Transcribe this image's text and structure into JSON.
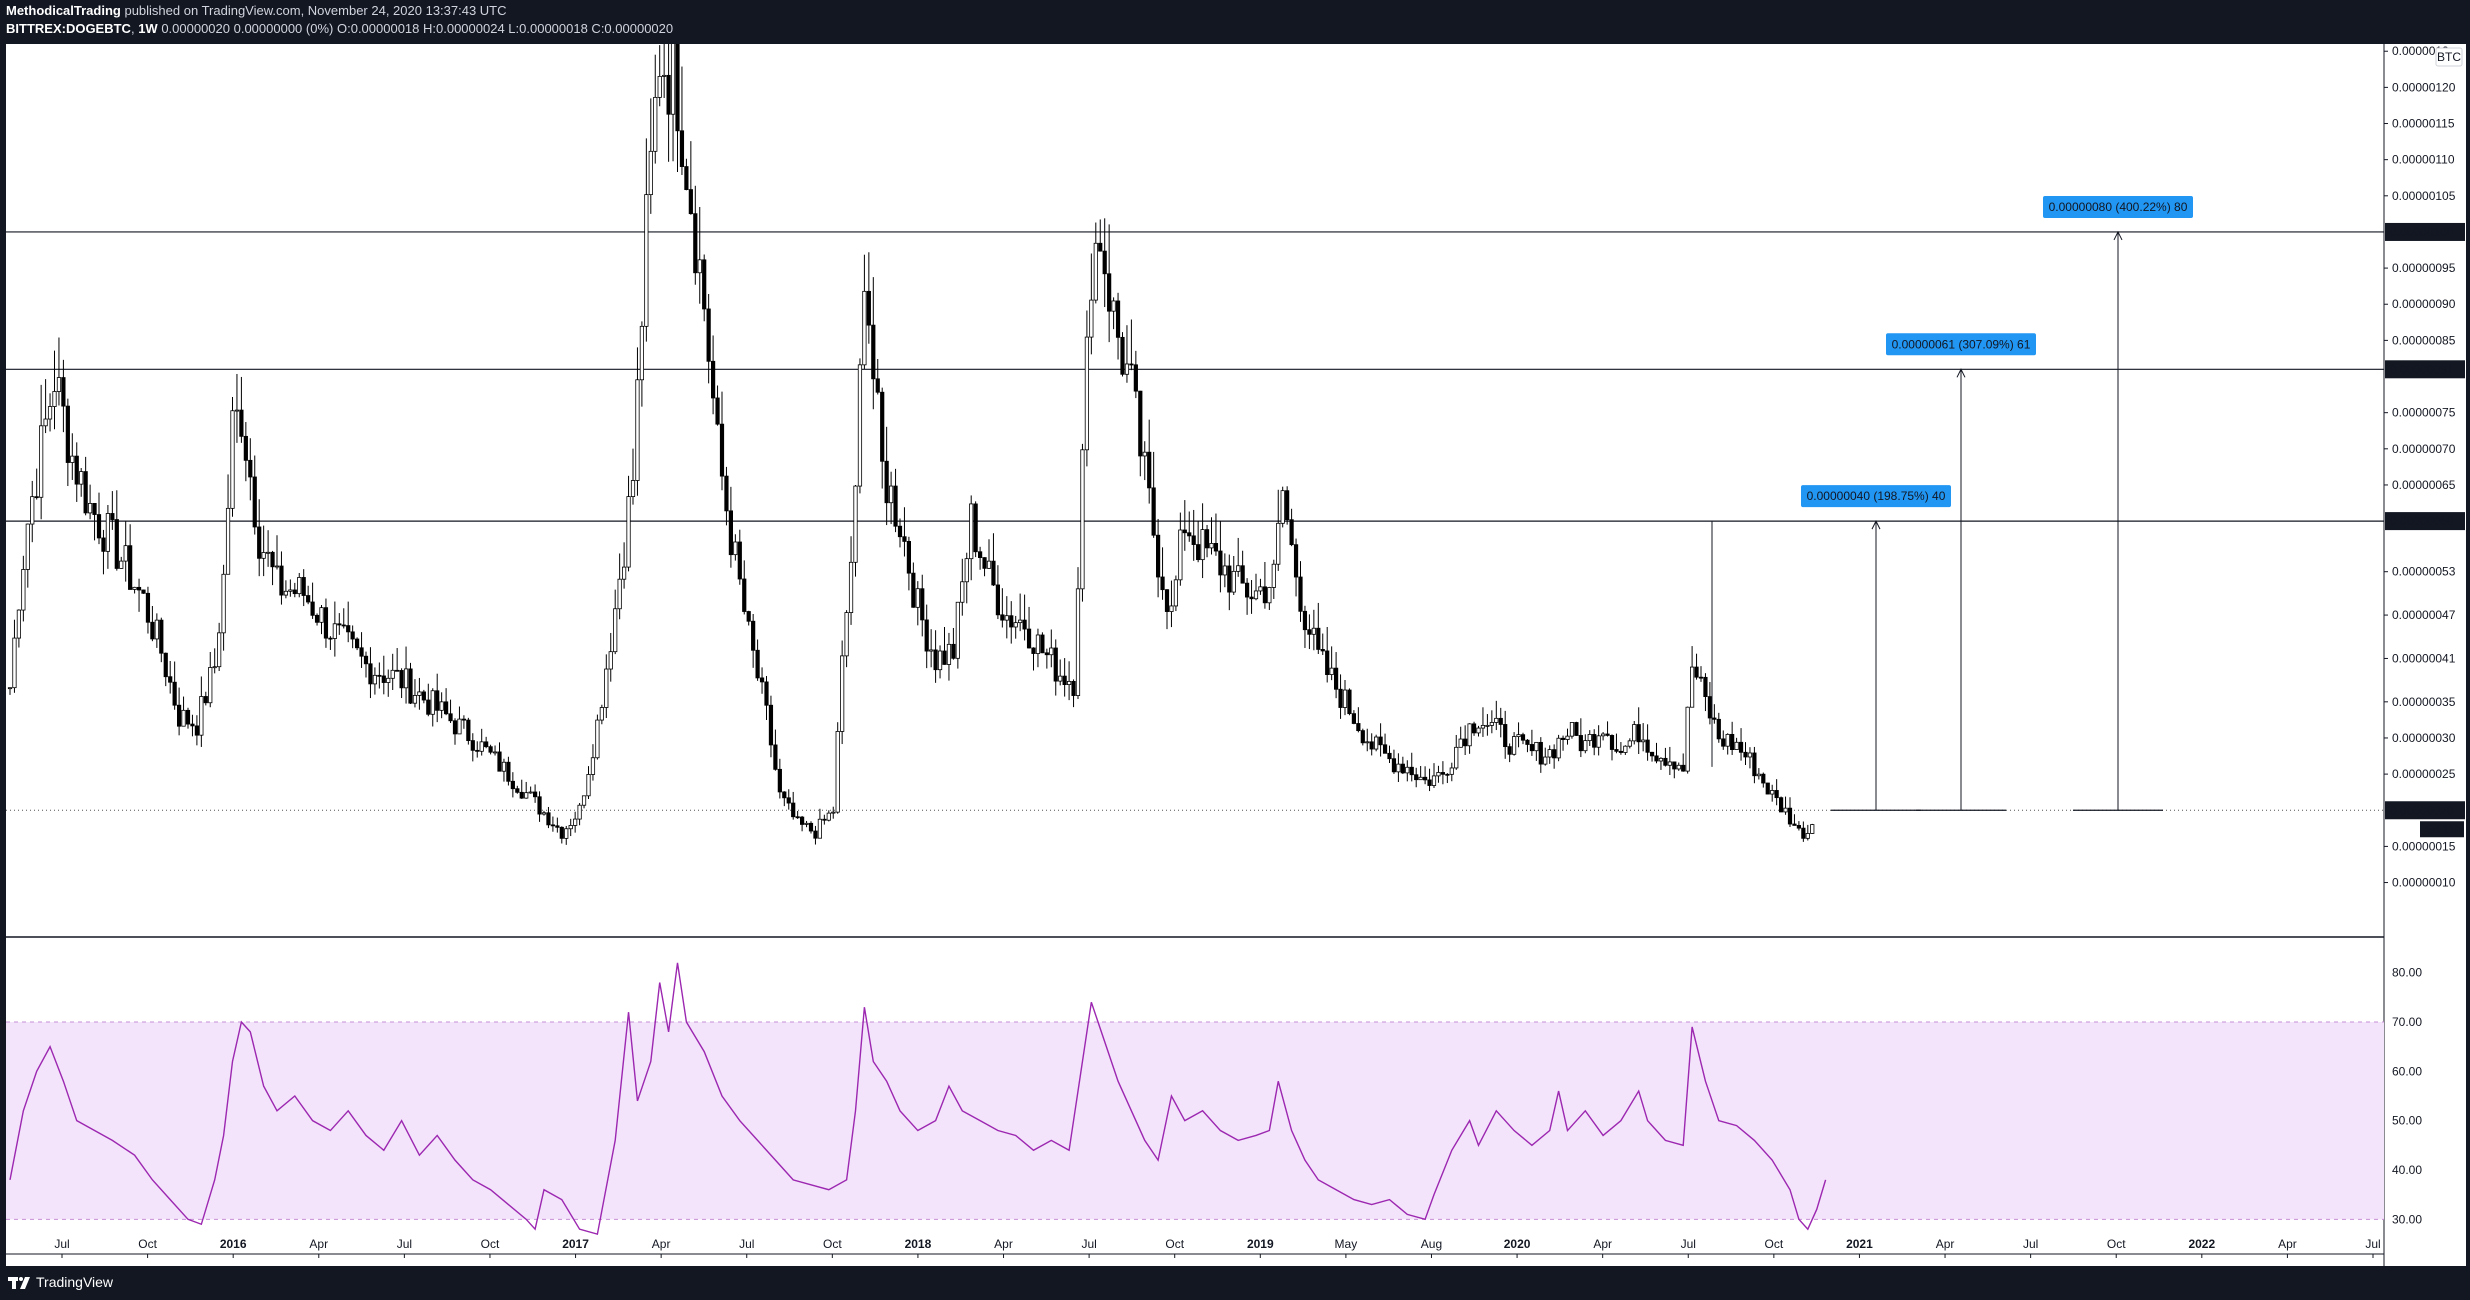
{
  "header": {
    "author": "MethodicalTrading",
    "published": "published on TradingView.com, November 24, 2020 13:37:43 UTC",
    "symbol": "BITTREX:DOGEBTC",
    "interval": "1W",
    "change": "0.00000020 0.00000000 (0%)",
    "ohlc": "O:0.00000018 H:0.00000024 L:0.00000018 C:0.00000020"
  },
  "footer": {
    "brand": "TradingView"
  },
  "colors": {
    "background": "#131722",
    "candle": "#000000",
    "rsi_line": "#9c27b0",
    "rsi_band": "#f3e3fb",
    "label_blue": "#2196f3"
  },
  "chart_data": [
    {
      "type": "line",
      "series_note": "price candles (weekly)",
      "currency_badge": "BTC",
      "price_axis_labels": [
        "0.0000012",
        "0.00000120",
        "0.00000115",
        "0.00000110",
        "0.00000105",
        "0.00000095",
        "0.00000090",
        "0.00000085",
        "0.00000075",
        "0.00000070",
        "0.00000065",
        "0.00000053",
        "0.00000047",
        "0.00000041",
        "0.00000035",
        "0.00000030",
        "0.00000025",
        "0.00000015",
        "0.00000010"
      ],
      "price_axis_values": [
        125,
        120,
        115,
        110,
        105,
        95,
        90,
        85,
        75,
        70,
        65,
        53,
        47,
        41,
        35,
        30,
        25,
        15,
        10
      ],
      "time_labels": [
        "Jul",
        "Oct",
        "2016",
        "Apr",
        "Jul",
        "Oct",
        "2017",
        "Apr",
        "Jul",
        "Oct",
        "2018",
        "Apr",
        "Jul",
        "Oct",
        "2019",
        "May",
        "Aug",
        "2020",
        "Apr",
        "Jul",
        "Oct",
        "2021",
        "Apr",
        "Jul",
        "Oct",
        "2022",
        "Apr",
        "Jul"
      ],
      "time_bold": [
        "2016",
        "2017",
        "2018",
        "2019",
        "2020",
        "2021",
        "2022"
      ],
      "horizontal_lines": [
        {
          "value": 100,
          "label": "0.00000100"
        },
        {
          "value": 81,
          "label": "0.00000081"
        },
        {
          "value": 60,
          "label": "0.00000060"
        }
      ],
      "current_price": {
        "value": 20,
        "label": "0.00000020",
        "countdown": "5d 11h"
      },
      "targets": [
        {
          "label": "0.00000040 (198.75%) 40",
          "from": 20,
          "to": 60
        },
        {
          "label": "0.00000061 (307.09%) 61",
          "from": 20,
          "to": 81
        },
        {
          "label": "0.00000080 (400.22%) 80",
          "from": 20,
          "to": 100
        }
      ],
      "swing_points": [
        {
          "x": 0,
          "y": 37
        },
        {
          "x": 2,
          "y": 50
        },
        {
          "x": 4,
          "y": 60
        },
        {
          "x": 7,
          "y": 70
        },
        {
          "x": 10,
          "y": 80
        },
        {
          "x": 14,
          "y": 69
        },
        {
          "x": 18,
          "y": 62
        },
        {
          "x": 24,
          "y": 56
        },
        {
          "x": 30,
          "y": 49
        },
        {
          "x": 34,
          "y": 42
        },
        {
          "x": 38,
          "y": 33
        },
        {
          "x": 42,
          "y": 32
        },
        {
          "x": 46,
          "y": 40
        },
        {
          "x": 48,
          "y": 52
        },
        {
          "x": 50,
          "y": 73
        },
        {
          "x": 52,
          "y": 75
        },
        {
          "x": 56,
          "y": 58
        },
        {
          "x": 60,
          "y": 51
        },
        {
          "x": 66,
          "y": 50
        },
        {
          "x": 72,
          "y": 45
        },
        {
          "x": 80,
          "y": 40
        },
        {
          "x": 88,
          "y": 38
        },
        {
          "x": 96,
          "y": 34
        },
        {
          "x": 104,
          "y": 30
        },
        {
          "x": 112,
          "y": 25
        },
        {
          "x": 118,
          "y": 21
        },
        {
          "x": 124,
          "y": 17
        },
        {
          "x": 128,
          "y": 20
        },
        {
          "x": 132,
          "y": 32
        },
        {
          "x": 136,
          "y": 48
        },
        {
          "x": 140,
          "y": 66
        },
        {
          "x": 143,
          "y": 100
        },
        {
          "x": 146,
          "y": 125
        },
        {
          "x": 150,
          "y": 120
        },
        {
          "x": 153,
          "y": 105
        },
        {
          "x": 156,
          "y": 90
        },
        {
          "x": 159,
          "y": 70
        },
        {
          "x": 162,
          "y": 58
        },
        {
          "x": 166,
          "y": 44
        },
        {
          "x": 170,
          "y": 33
        },
        {
          "x": 173,
          "y": 22
        },
        {
          "x": 177,
          "y": 18
        },
        {
          "x": 181,
          "y": 17
        },
        {
          "x": 185,
          "y": 20
        },
        {
          "x": 187,
          "y": 40
        },
        {
          "x": 190,
          "y": 62
        },
        {
          "x": 192,
          "y": 97
        },
        {
          "x": 194,
          "y": 80
        },
        {
          "x": 196,
          "y": 67
        },
        {
          "x": 200,
          "y": 60
        },
        {
          "x": 204,
          "y": 48
        },
        {
          "x": 208,
          "y": 41
        },
        {
          "x": 212,
          "y": 42
        },
        {
          "x": 216,
          "y": 60
        },
        {
          "x": 220,
          "y": 52
        },
        {
          "x": 224,
          "y": 47
        },
        {
          "x": 228,
          "y": 46
        },
        {
          "x": 232,
          "y": 42
        },
        {
          "x": 236,
          "y": 39
        },
        {
          "x": 239,
          "y": 38
        },
        {
          "x": 241,
          "y": 68
        },
        {
          "x": 243,
          "y": 96
        },
        {
          "x": 245,
          "y": 100
        },
        {
          "x": 248,
          "y": 88
        },
        {
          "x": 252,
          "y": 78
        },
        {
          "x": 255,
          "y": 66
        },
        {
          "x": 258,
          "y": 55
        },
        {
          "x": 261,
          "y": 47
        },
        {
          "x": 264,
          "y": 60
        },
        {
          "x": 268,
          "y": 56
        },
        {
          "x": 272,
          "y": 54
        },
        {
          "x": 276,
          "y": 51
        },
        {
          "x": 280,
          "y": 50
        },
        {
          "x": 284,
          "y": 52
        },
        {
          "x": 286,
          "y": 64
        },
        {
          "x": 288,
          "y": 56
        },
        {
          "x": 291,
          "y": 47
        },
        {
          "x": 294,
          "y": 41
        },
        {
          "x": 298,
          "y": 37
        },
        {
          "x": 302,
          "y": 33
        },
        {
          "x": 306,
          "y": 29
        },
        {
          "x": 310,
          "y": 27
        },
        {
          "x": 314,
          "y": 26
        },
        {
          "x": 318,
          "y": 24
        },
        {
          "x": 322,
          "y": 25
        },
        {
          "x": 326,
          "y": 30
        },
        {
          "x": 330,
          "y": 33
        },
        {
          "x": 334,
          "y": 31
        },
        {
          "x": 338,
          "y": 29
        },
        {
          "x": 342,
          "y": 28
        },
        {
          "x": 346,
          "y": 28
        },
        {
          "x": 350,
          "y": 31
        },
        {
          "x": 354,
          "y": 29
        },
        {
          "x": 358,
          "y": 32
        },
        {
          "x": 362,
          "y": 28
        },
        {
          "x": 366,
          "y": 31
        },
        {
          "x": 370,
          "y": 28
        },
        {
          "x": 374,
          "y": 27
        },
        {
          "x": 376,
          "y": 26
        },
        {
          "x": 378,
          "y": 40
        },
        {
          "x": 381,
          "y": 35
        },
        {
          "x": 384,
          "y": 30
        },
        {
          "x": 388,
          "y": 29
        },
        {
          "x": 392,
          "y": 26
        },
        {
          "x": 396,
          "y": 22
        },
        {
          "x": 400,
          "y": 19
        },
        {
          "x": 402,
          "y": 17
        },
        {
          "x": 404,
          "y": 17
        },
        {
          "x": 406,
          "y": 20
        }
      ]
    },
    {
      "type": "line",
      "series_note": "RSI oscillator",
      "axis_labels": [
        "80.00",
        "70.00",
        "60.00",
        "50.00",
        "40.00",
        "30.00"
      ],
      "axis_values": [
        80,
        70,
        60,
        50,
        40,
        30
      ],
      "band": [
        30,
        70
      ],
      "ylim": [
        25,
        85
      ],
      "points": [
        {
          "x": 0,
          "y": 38
        },
        {
          "x": 3,
          "y": 52
        },
        {
          "x": 6,
          "y": 60
        },
        {
          "x": 9,
          "y": 65
        },
        {
          "x": 12,
          "y": 58
        },
        {
          "x": 15,
          "y": 50
        },
        {
          "x": 19,
          "y": 48
        },
        {
          "x": 23,
          "y": 46
        },
        {
          "x": 28,
          "y": 43
        },
        {
          "x": 32,
          "y": 38
        },
        {
          "x": 36,
          "y": 34
        },
        {
          "x": 40,
          "y": 30
        },
        {
          "x": 43,
          "y": 29
        },
        {
          "x": 46,
          "y": 38
        },
        {
          "x": 48,
          "y": 47
        },
        {
          "x": 50,
          "y": 62
        },
        {
          "x": 52,
          "y": 70
        },
        {
          "x": 54,
          "y": 68
        },
        {
          "x": 57,
          "y": 57
        },
        {
          "x": 60,
          "y": 52
        },
        {
          "x": 64,
          "y": 55
        },
        {
          "x": 68,
          "y": 50
        },
        {
          "x": 72,
          "y": 48
        },
        {
          "x": 76,
          "y": 52
        },
        {
          "x": 80,
          "y": 47
        },
        {
          "x": 84,
          "y": 44
        },
        {
          "x": 88,
          "y": 50
        },
        {
          "x": 92,
          "y": 43
        },
        {
          "x": 96,
          "y": 47
        },
        {
          "x": 100,
          "y": 42
        },
        {
          "x": 104,
          "y": 38
        },
        {
          "x": 108,
          "y": 36
        },
        {
          "x": 112,
          "y": 33
        },
        {
          "x": 116,
          "y": 30
        },
        {
          "x": 118,
          "y": 28
        },
        {
          "x": 120,
          "y": 36
        },
        {
          "x": 124,
          "y": 34
        },
        {
          "x": 128,
          "y": 28
        },
        {
          "x": 132,
          "y": 27
        },
        {
          "x": 136,
          "y": 46
        },
        {
          "x": 139,
          "y": 72
        },
        {
          "x": 141,
          "y": 54
        },
        {
          "x": 144,
          "y": 62
        },
        {
          "x": 146,
          "y": 78
        },
        {
          "x": 148,
          "y": 68
        },
        {
          "x": 150,
          "y": 82
        },
        {
          "x": 152,
          "y": 70
        },
        {
          "x": 156,
          "y": 64
        },
        {
          "x": 160,
          "y": 55
        },
        {
          "x": 164,
          "y": 50
        },
        {
          "x": 168,
          "y": 46
        },
        {
          "x": 172,
          "y": 42
        },
        {
          "x": 176,
          "y": 38
        },
        {
          "x": 180,
          "y": 37
        },
        {
          "x": 184,
          "y": 36
        },
        {
          "x": 188,
          "y": 38
        },
        {
          "x": 190,
          "y": 52
        },
        {
          "x": 192,
          "y": 73
        },
        {
          "x": 194,
          "y": 62
        },
        {
          "x": 197,
          "y": 58
        },
        {
          "x": 200,
          "y": 52
        },
        {
          "x": 204,
          "y": 48
        },
        {
          "x": 208,
          "y": 50
        },
        {
          "x": 211,
          "y": 57
        },
        {
          "x": 214,
          "y": 52
        },
        {
          "x": 218,
          "y": 50
        },
        {
          "x": 222,
          "y": 48
        },
        {
          "x": 226,
          "y": 47
        },
        {
          "x": 230,
          "y": 44
        },
        {
          "x": 234,
          "y": 46
        },
        {
          "x": 238,
          "y": 44
        },
        {
          "x": 241,
          "y": 62
        },
        {
          "x": 243,
          "y": 74
        },
        {
          "x": 246,
          "y": 66
        },
        {
          "x": 249,
          "y": 58
        },
        {
          "x": 252,
          "y": 52
        },
        {
          "x": 255,
          "y": 46
        },
        {
          "x": 258,
          "y": 42
        },
        {
          "x": 261,
          "y": 55
        },
        {
          "x": 264,
          "y": 50
        },
        {
          "x": 268,
          "y": 52
        },
        {
          "x": 272,
          "y": 48
        },
        {
          "x": 276,
          "y": 46
        },
        {
          "x": 280,
          "y": 47
        },
        {
          "x": 283,
          "y": 48
        },
        {
          "x": 285,
          "y": 58
        },
        {
          "x": 288,
          "y": 48
        },
        {
          "x": 291,
          "y": 42
        },
        {
          "x": 294,
          "y": 38
        },
        {
          "x": 298,
          "y": 36
        },
        {
          "x": 302,
          "y": 34
        },
        {
          "x": 306,
          "y": 33
        },
        {
          "x": 310,
          "y": 34
        },
        {
          "x": 314,
          "y": 31
        },
        {
          "x": 318,
          "y": 30
        },
        {
          "x": 320,
          "y": 35
        },
        {
          "x": 324,
          "y": 44
        },
        {
          "x": 328,
          "y": 50
        },
        {
          "x": 330,
          "y": 45
        },
        {
          "x": 334,
          "y": 52
        },
        {
          "x": 338,
          "y": 48
        },
        {
          "x": 342,
          "y": 45
        },
        {
          "x": 346,
          "y": 48
        },
        {
          "x": 348,
          "y": 56
        },
        {
          "x": 350,
          "y": 48
        },
        {
          "x": 354,
          "y": 52
        },
        {
          "x": 358,
          "y": 47
        },
        {
          "x": 362,
          "y": 50
        },
        {
          "x": 366,
          "y": 56
        },
        {
          "x": 368,
          "y": 50
        },
        {
          "x": 372,
          "y": 46
        },
        {
          "x": 376,
          "y": 45
        },
        {
          "x": 378,
          "y": 69
        },
        {
          "x": 381,
          "y": 58
        },
        {
          "x": 384,
          "y": 50
        },
        {
          "x": 388,
          "y": 49
        },
        {
          "x": 392,
          "y": 46
        },
        {
          "x": 396,
          "y": 42
        },
        {
          "x": 400,
          "y": 36
        },
        {
          "x": 402,
          "y": 30
        },
        {
          "x": 404,
          "y": 28
        },
        {
          "x": 406,
          "y": 32
        },
        {
          "x": 408,
          "y": 38
        }
      ]
    }
  ]
}
